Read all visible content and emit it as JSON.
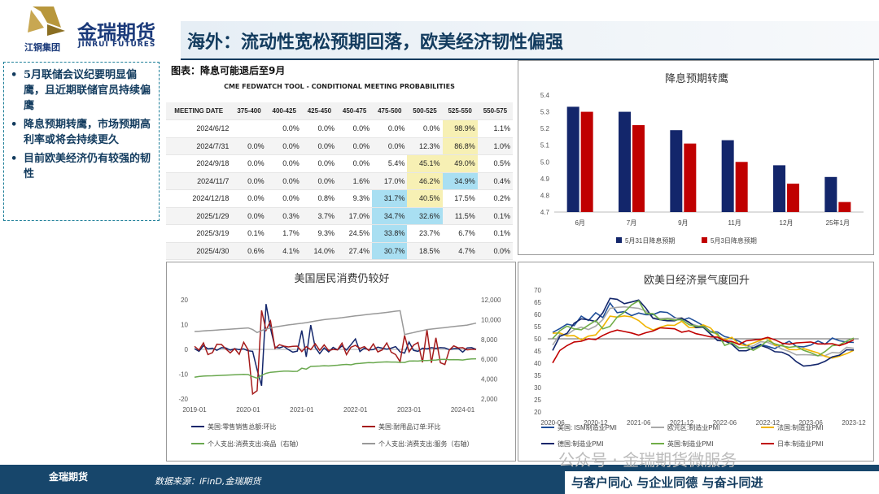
{
  "brand": {
    "name_cn": "金瑞期货",
    "name_en": "JINRUI FUTURES",
    "group": "江铜集团"
  },
  "page_title": "海外：流动性宽松预期回落，欧美经济韧性偏强",
  "bullets": [
    "5月联储会议纪要明显偏鹰，且近期联储官员持续偏鹰",
    "降息预期转鹰，市场预期高利率或将会持续更久",
    "目前欧美经济仍有较强的韧性"
  ],
  "table": {
    "caption": "图表：降息可能退后至9月",
    "title": "CME FEDWATCH TOOL - CONDITIONAL MEETING PROBABILITIES",
    "headers": [
      "MEETING DATE",
      "375-400",
      "400-425",
      "425-450",
      "450-475",
      "475-500",
      "500-525",
      "525-550",
      "550-575"
    ],
    "rows": [
      [
        "2024/6/12",
        "",
        "0.0%",
        "0.0%",
        "0.0%",
        "0.0%",
        "0.0%",
        "98.9%",
        "1.1%"
      ],
      [
        "2024/7/31",
        "0.0%",
        "0.0%",
        "0.0%",
        "0.0%",
        "0.0%",
        "12.3%",
        "86.8%",
        "1.0%"
      ],
      [
        "2024/9/18",
        "0.0%",
        "0.0%",
        "0.0%",
        "0.0%",
        "5.4%",
        "45.1%",
        "49.0%",
        "0.5%"
      ],
      [
        "2024/11/7",
        "0.0%",
        "0.0%",
        "0.0%",
        "1.6%",
        "17.0%",
        "46.2%",
        "34.9%",
        "0.4%"
      ],
      [
        "2024/12/18",
        "0.0%",
        "0.0%",
        "0.8%",
        "9.3%",
        "31.7%",
        "40.5%",
        "17.5%",
        "0.2%"
      ],
      [
        "2025/1/29",
        "0.0%",
        "0.3%",
        "3.7%",
        "17.0%",
        "34.7%",
        "32.6%",
        "11.5%",
        "0.1%"
      ],
      [
        "2025/3/19",
        "0.1%",
        "1.7%",
        "9.3%",
        "24.5%",
        "33.8%",
        "23.7%",
        "6.7%",
        "0.1%"
      ],
      [
        "2025/4/30",
        "0.6%",
        "4.1%",
        "14.0%",
        "27.4%",
        "30.7%",
        "18.5%",
        "4.7%",
        "0.0%"
      ]
    ]
  },
  "colors": {
    "navy": "#13266b",
    "red": "#c00000",
    "darkred": "#a51b1b",
    "green": "#6aa84f",
    "grey": "#999999",
    "title_blue": "#123b5e"
  },
  "chart_data": [
    {
      "type": "bar",
      "title": "降息预期转鹰",
      "categories": [
        "6月",
        "7月",
        "9月",
        "11月",
        "12月",
        "25年1月"
      ],
      "series": [
        {
          "name": "5月31日降息预期",
          "values": [
            5.33,
            5.3,
            5.19,
            5.13,
            4.98,
            4.91
          ]
        },
        {
          "name": "5月3日降息预期",
          "values": [
            5.3,
            5.22,
            5.11,
            5.0,
            4.87,
            4.76
          ]
        }
      ],
      "ylim": [
        4.7,
        5.4
      ],
      "yticks": [
        "5.4",
        "5.3",
        "5.2",
        "5.1",
        "5.0",
        "4.9",
        "4.8",
        "4.7"
      ],
      "legend": "bottom"
    },
    {
      "type": "line",
      "title": "美国居民消费仍较好",
      "xticks": [
        "2019-01",
        "2020-01",
        "2021-01",
        "2022-01",
        "2023-01",
        "2024-01"
      ],
      "yticks_left": [
        "20",
        "10",
        "0",
        "-10",
        "-20"
      ],
      "yticks_right": [
        "12,000",
        "10,000",
        "8,000",
        "6,000",
        "4,000",
        "2,000"
      ],
      "ylim_left": [
        -20,
        20
      ],
      "ylim_right": [
        2000,
        12000
      ],
      "series": [
        {
          "name": "美国:零售销售总额:环比",
          "axis": "left",
          "values": [
            0.3,
            -0.8,
            1.5,
            0.2,
            0.5,
            -0.4,
            0.7,
            0.6,
            -0.3,
            0.3,
            -0.1,
            0.2,
            -0.6,
            -0.8,
            -8.2,
            -14.7,
            18.3,
            8.4,
            0.9,
            0.6,
            1.2,
            -0.1,
            -1.1,
            -0.7,
            7.6,
            -3.0,
            9.8,
            0.8,
            -1.7,
            0.6,
            -1.0,
            0.8,
            -0.2,
            1.4,
            -0.3,
            1.9,
            4.2,
            -0.9,
            0.5,
            -0.2,
            -0.1,
            0.9,
            0.5,
            0.1,
            0.5,
            1.1,
            -1.0,
            -1.5,
            3.0,
            -0.4,
            -0.8,
            0.5,
            0.2,
            0.7,
            0.4,
            0.7,
            0.6,
            -0.1,
            0.3,
            0.4,
            -1.1,
            0.6,
            0.7,
            0.0
          ]
        },
        {
          "name": "美国:耐用品订单:环比",
          "axis": "left",
          "values": [
            1.2,
            -0.3,
            2.6,
            -2.1,
            -1.3,
            2.1,
            2.0,
            0.2,
            -1.4,
            0.3,
            -2.0,
            2.9,
            -0.2,
            -18.0,
            -16.7,
            15.7,
            7.7,
            11.4,
            0.4,
            1.9,
            1.3,
            1.0,
            1.2,
            1.3,
            -0.9,
            1.1,
            -0.1,
            2.3,
            -0.4,
            1.8,
            -0.5,
            0.0,
            -0.2,
            2.5,
            -2.1,
            0.9,
            1.6,
            0.4,
            1.1,
            -0.5,
            2.2,
            -1.0,
            -0.2,
            2.6,
            -1.1,
            -2.1,
            -5.0,
            5.6,
            -1.0,
            1.7,
            2.8,
            -5.2,
            7.9,
            -5.4,
            4.7,
            -5.4,
            -6.1,
            -0.3,
            1.4,
            0.6,
            0.7,
            -0.2,
            0.0,
            0.0
          ]
        },
        {
          "name": "个人支出:消费支出:商品（右轴）",
          "axis": "right",
          "values": [
            4200,
            4260,
            4300,
            4330,
            4340,
            4360,
            4380,
            4400,
            4420,
            4440,
            4460,
            4480,
            4460,
            4250,
            4100,
            4380,
            4580,
            4690,
            4730,
            4760,
            4810,
            4810,
            4780,
            4790,
            5100,
            5010,
            5280,
            5300,
            5320,
            5350,
            5330,
            5370,
            5400,
            5450,
            5480,
            5440,
            5560,
            5580,
            5630,
            5660,
            5650,
            5700,
            5720,
            5740,
            5720,
            5720,
            5690,
            5680,
            5820,
            5830,
            5820,
            5880,
            5880,
            5900,
            5930,
            5980,
            5990,
            5960,
            5970,
            5960,
            5930,
            5990,
            6040,
            6050
          ]
        },
        {
          "name": "个人支出:消费支出:服务（右轴）",
          "axis": "right",
          "values": [
            8800,
            8830,
            8860,
            8890,
            8920,
            8950,
            8980,
            9010,
            9040,
            9070,
            9100,
            9130,
            9160,
            9000,
            8700,
            8900,
            9050,
            9150,
            9250,
            9330,
            9400,
            9470,
            9520,
            9580,
            9630,
            9700,
            9780,
            9860,
            9930,
            10000,
            10050,
            10100,
            10150,
            10200,
            10260,
            10320,
            10380,
            10430,
            10480,
            10530,
            10580,
            10630,
            10680,
            10730,
            10790,
            10850,
            10900,
            8500,
            8600,
            8700,
            8800,
            8900,
            9000,
            9050,
            9100,
            9150,
            9200,
            9250,
            9300,
            9350,
            9400,
            9450,
            9550,
            9650
          ]
        }
      ],
      "legend": "bottom"
    },
    {
      "type": "line",
      "title": "欧美日经济景气度回升",
      "xticks": [
        "2020-06",
        "2020-12",
        "2021-06",
        "2021-12",
        "2022-06",
        "2022-12",
        "2023-06",
        "2023-12"
      ],
      "yticks": [
        "70",
        "65",
        "60",
        "55",
        "50",
        "45",
        "40",
        "35",
        "30",
        "25",
        "20"
      ],
      "ylim": [
        20,
        70
      ],
      "series": [
        {
          "name": "美国: ISM制造业PMI",
          "values": [
            52.6,
            54.2,
            56.0,
            55.4,
            59.3,
            57.5,
            60.7,
            58.7,
            64.7,
            60.7,
            61.2,
            59.5,
            60.6,
            59.9,
            59.9,
            61.1,
            60.8,
            58.8,
            57.6,
            58.6,
            57.1,
            55.4,
            53.0,
            52.8,
            50.9,
            50.2,
            49.0,
            47.4,
            46.3,
            47.7,
            46.9,
            46.0,
            47.6,
            49.0,
            46.9,
            46.7,
            47.4,
            49.1,
            47.8,
            50.3,
            49.2,
            48.7,
            48.5
          ]
        },
        {
          "name": "欧元区:制造业PMI",
          "values": [
            47.4,
            51.8,
            51.7,
            53.7,
            54.8,
            53.8,
            55.2,
            57.9,
            62.5,
            62.9,
            63.1,
            62.8,
            62.5,
            61.4,
            58.6,
            58.3,
            58.5,
            58.4,
            58.7,
            56.5,
            55.5,
            54.6,
            52.1,
            49.8,
            49.6,
            48.4,
            46.4,
            46.4,
            47.1,
            48.8,
            48.5,
            47.3,
            45.8,
            44.8,
            43.4,
            43.5,
            43.4,
            43.1,
            43.1,
            44.4,
            44.2,
            46.5,
            46.1
          ]
        },
        {
          "name": "法国:制造业PMI",
          "values": [
            52.3,
            52.4,
            51.2,
            51.3,
            49.6,
            51.1,
            51.6,
            55.0,
            59.3,
            58.9,
            59.4,
            59.0,
            57.5,
            55.0,
            53.6,
            54.7,
            55.6,
            55.5,
            57.2,
            54.7,
            54.6,
            55.7,
            54.5,
            51.4,
            49.5,
            50.6,
            47.7,
            47.2,
            48.3,
            49.4,
            50.5,
            47.3,
            47.4,
            45.6,
            45.5,
            46.0,
            45.1,
            44.2,
            42.8,
            42.1,
            42.9,
            43.9,
            45.3
          ]
        },
        {
          "name": "德国:制造业PMI",
          "values": [
            45.2,
            51.0,
            52.2,
            56.4,
            58.2,
            57.8,
            57.1,
            60.7,
            66.6,
            66.2,
            64.4,
            65.1,
            65.9,
            62.6,
            58.4,
            57.8,
            57.4,
            57.4,
            58.4,
            56.9,
            54.6,
            54.8,
            52.0,
            49.3,
            49.1,
            47.8,
            45.1,
            45.1,
            46.2,
            47.3,
            46.3,
            44.7,
            44.5,
            43.2,
            40.6,
            38.8,
            39.1,
            39.6,
            40.8,
            42.6,
            43.3,
            45.5,
            45.4
          ]
        },
        {
          "name": "英国:制造业PMI",
          "values": [
            50.1,
            53.3,
            55.2,
            54.1,
            53.7,
            55.6,
            57.5,
            54.1,
            55.1,
            58.9,
            60.9,
            63.9,
            65.6,
            60.4,
            60.3,
            57.8,
            58.1,
            57.7,
            57.9,
            55.8,
            55.2,
            55.1,
            52.8,
            52.1,
            47.3,
            48.4,
            46.2,
            46.5,
            45.3,
            47.0,
            49.3,
            47.9,
            47.1,
            46.5,
            46.9,
            45.3,
            44.3,
            43.0,
            44.8,
            47.2,
            47.5,
            49.1,
            50.3
          ]
        },
        {
          "name": "日本:制造业PMI",
          "values": [
            40.1,
            45.2,
            47.2,
            48.7,
            49.0,
            50.0,
            49.7,
            51.4,
            52.7,
            53.6,
            53.0,
            52.4,
            51.5,
            52.5,
            53.2,
            54.5,
            54.3,
            54.1,
            52.7,
            53.3,
            52.1,
            51.5,
            50.8,
            50.7,
            49.2,
            48.9,
            47.7,
            49.2,
            49.5,
            49.8,
            50.6,
            49.6,
            48.2,
            47.8,
            48.3,
            48.5,
            48.7,
            47.9,
            47.9,
            48.0,
            47.2,
            48.2,
            49.6
          ]
        }
      ],
      "legend": "bottom"
    }
  ],
  "footer": {
    "source": "数据来源：iFinD,金瑞期货",
    "slogan": "与客户同心 与企业同德 与奋斗同进",
    "watermark": "公众号 · 金瑞期货微服务"
  }
}
